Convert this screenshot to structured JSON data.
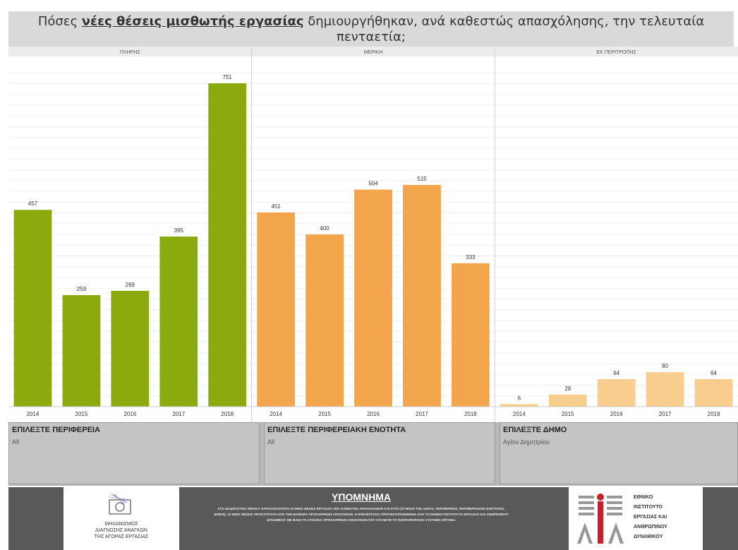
{
  "title": {
    "prefix": "Πόσες ",
    "highlight": "νέες θέσεις μισθωτής εργασίας",
    "suffix": " δημιουργήθηκαν, ανά καθεστώς απασχόλησης, την τελευταία πενταετία;"
  },
  "chart_data": {
    "type": "bar",
    "ylim": [
      0,
      800
    ],
    "grid": true,
    "panels": [
      {
        "name": "ΠΛΗΡΗΣ",
        "color": "#8aaa0e",
        "categories": [
          "2014",
          "2015",
          "2016",
          "2017",
          "2018"
        ],
        "values": [
          457,
          259,
          269,
          395,
          751
        ]
      },
      {
        "name": "ΜΕΡΙΚΗ",
        "color": "#f2a54a",
        "categories": [
          "2014",
          "2015",
          "2016",
          "2017",
          "2018"
        ],
        "values": [
          451,
          400,
          504,
          515,
          333
        ]
      },
      {
        "name": "ΕΚ ΠΕΡΙΤΡΟΠΗΣ",
        "color": "#f8cd8e",
        "categories": [
          "2014",
          "2015",
          "2016",
          "2017",
          "2018"
        ],
        "values": [
          6,
          28,
          64,
          80,
          64
        ]
      }
    ]
  },
  "filters": [
    {
      "label": "ΕΠΙΛΕΞΤΕ ΠΕΡΙΦΕΡΕΙΑ",
      "value": "All"
    },
    {
      "label": "ΕΠΙΛΕΞΤΕ ΠΕΡΙΦΕΡΕΙΑΚΗ ΕΝΟΤΗΤΑ",
      "value": "All"
    },
    {
      "label": "ΕΠΙΛΕΞΤΕ ΔΗΜΟ",
      "value": "Αγίου Δημητρίου"
    }
  ],
  "footer": {
    "left_logo_text": "ΜΗΧΑΝΙΣΜΟΣ\nΔΙΑΓΝΩΣΗΣ ΑΝΑΓΚΩΝ\nΤΗΣ ΑΓΟΡΑΣ ΕΡΓΑΣΙΑΣ",
    "legend_title": "ΥΠΟΜΝΗΜΑ",
    "legend_text": "ΣΤΟ ΔΙΑΔΡΑΣΤΙΚΟ ΠΙΝΑΚΑ ΠΑΡΟΥΣΙΑΖΟΝΤΑΙ ΟΙ ΝΕΕΣ ΘΕΣΕΙΣ ΕΡΓΑΣΙΑΣ ΑΝΑ ΚΑΘΕΣΤΩΣ ΑΠΑΣΧΟΛΗΣΗΣ ΚΑΙ ΕΤΟΣ (ΣΥΝΟΛΟ ΤΗΣ ΧΩΡΑΣ, ΠΕΡΙΦΕΡΕΙΕΣ, ΠΕΡΙΦΕΡΕΙΑΚΕΣ ΕΝΟΤΗΤΕΣ, ΔΗΜΟΙ). ΟΙ ΝΕΕΣ ΘΕΣΕΙΣ ΠΡΟΚΥΠΤΟΥΝ ΑΠΟ ΤΗΝ ΔΙΑΦΟΡΑ ΠΡΟΣΛΗΨΕΩΝ ΑΠΟΛΥΣΕΩΝ. Η ΕΠΕΞΕΡΓΑΣΙΑ ΠΡΑΓΜΑΤΟΠΟΙΗΘΗΚΕ ΑΠΟ ΤΟ ΕΘΝΙΚΟ ΙΝΣΤΙΤΟΥΤΟ ΕΡΓΑΣΙΑΣ ΚΑΙ ΑΝΘΡΩΠΙΝΟΥ ΔΥΝΑΜΙΚΟΥ ΜΕ ΒΑΣΗ ΤΑ ΣΤΟΙΧΕΙΑ ΠΡΟΣΛΗΨΕΩΝ ΑΠΟΛΥΣΕΩΝ ΠΟΥ ΣΥΛΛΕΓΕΙ ΤΟ ΠΛΗΡΟΦΟΡΙΑΚΟ ΣΥΣΤΗΜΑ ΕΡΓΑΝΗ.",
    "right_logo_text": "ΕΘΝΙΚΟ\nΙΝΣΤΙΤΟΥΤΟ\nΕΡΓΑΣΙΑΣ ΚΑΙ\nΑΝΘΡΩΠΙΝΟΥ\nΔΥΝΑΜΙΚΟΥ",
    "right_logo_mark": "ΕΙΕΑΔ"
  }
}
